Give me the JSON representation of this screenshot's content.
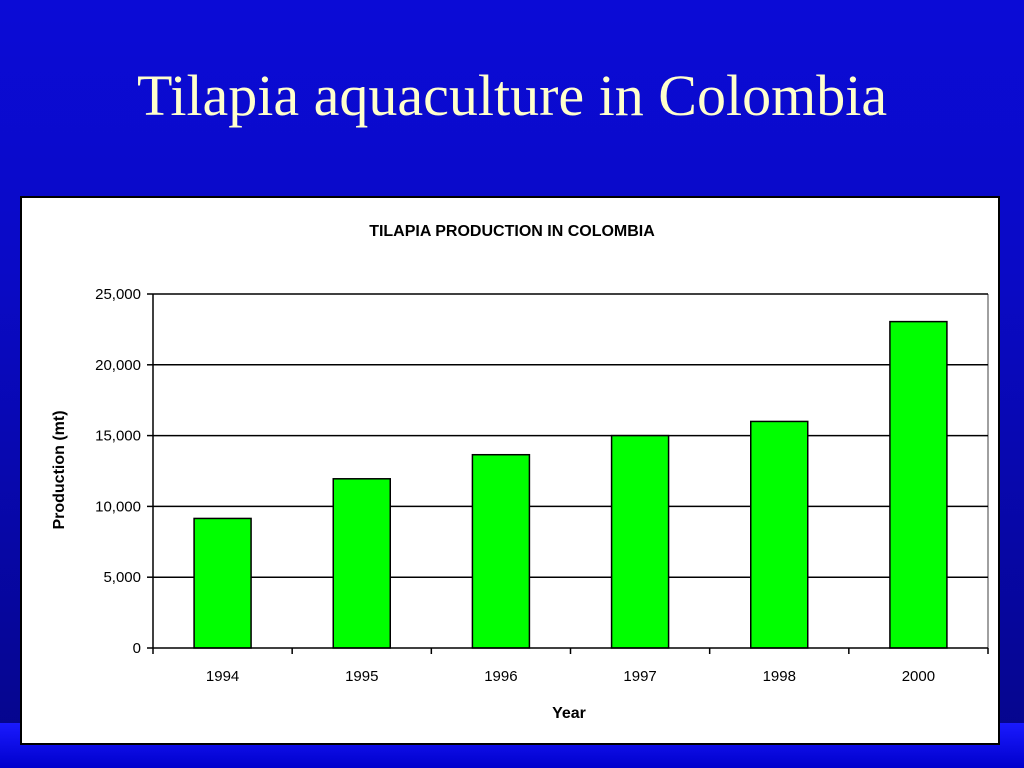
{
  "slide": {
    "title": "Tilapia aquaculture in Colombia"
  },
  "colors": {
    "background": "#0a0ac6",
    "title_text": "#ffffcc",
    "bar_fill": "#00ff00",
    "bar_stroke": "#000000"
  },
  "chart_data": {
    "type": "bar",
    "title": "TILAPIA PRODUCTION IN COLOMBIA",
    "xlabel": "Year",
    "ylabel": "Production (mt)",
    "categories": [
      "1994",
      "1995",
      "1996",
      "1997",
      "1998",
      "2000"
    ],
    "values": [
      9150,
      11950,
      13650,
      15000,
      16000,
      23050
    ],
    "ylim": [
      0,
      25000
    ],
    "yticks": [
      0,
      5000,
      10000,
      15000,
      20000,
      25000
    ],
    "ytick_labels": [
      "0",
      "5,000",
      "10,000",
      "15,000",
      "20,000",
      "25,000"
    ],
    "grid": "horizontal",
    "legend": "none"
  }
}
